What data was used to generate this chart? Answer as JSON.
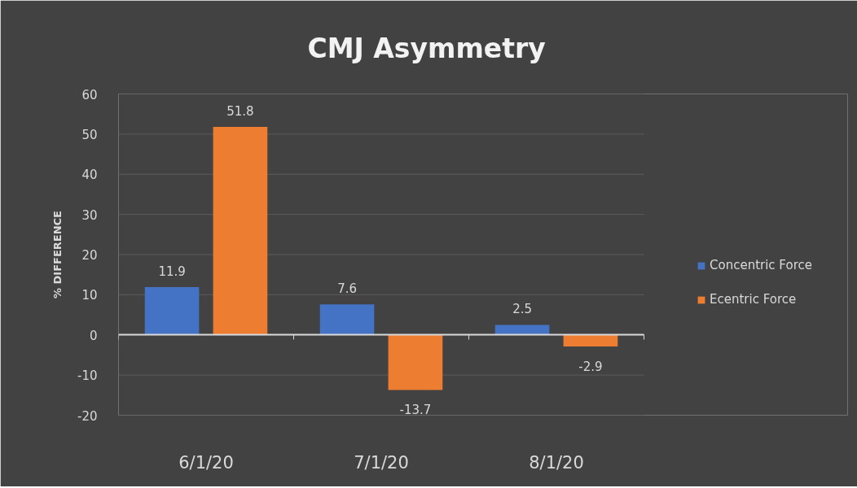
{
  "chart_data": {
    "type": "bar",
    "title": "CMJ Asymmetry",
    "ylabel": "% DIFFERENCE",
    "categories": [
      "6/1/20",
      "7/1/20",
      "8/1/20"
    ],
    "series": [
      {
        "name": "Concentric Force",
        "color": "#4472c4",
        "values": [
          11.9,
          7.6,
          2.5
        ]
      },
      {
        "name": "Ecentric Force",
        "color": "#ed7d31",
        "values": [
          51.8,
          -13.7,
          -2.9
        ]
      }
    ],
    "ylim": [
      -20,
      60
    ],
    "yticks": [
      -20,
      -10,
      0,
      10,
      20,
      30,
      40,
      50,
      60
    ],
    "grid": "y",
    "legend": "right",
    "data_labels": true
  }
}
